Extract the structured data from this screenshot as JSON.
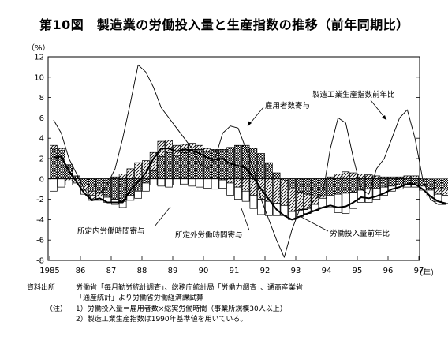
{
  "title": "第10図　製造業の労働投入量と生産指数の推移（前年同期比）",
  "chart_data": {
    "type": "bar",
    "y_unit": "（%）",
    "x_unit": "（年）",
    "ylim": [
      -8,
      12
    ],
    "y_ticks": [
      12,
      10,
      8,
      6,
      4,
      2,
      0,
      -2,
      -4,
      -6,
      -8
    ],
    "x_tick_labels": [
      "1985",
      "86",
      "87",
      "88",
      "89",
      "90",
      "91",
      "92",
      "93",
      "94",
      "95",
      "96",
      "97"
    ],
    "quarters_per_year": 4,
    "first_year": 1985,
    "grid": false,
    "series": [
      {
        "name": "雇用者数寄与",
        "kind": "bar",
        "pattern": "cross-hatch",
        "values": [
          3.0,
          2.8,
          1.4,
          0.3,
          -0.6,
          -1.2,
          -1.4,
          -1.7,
          -2.0,
          -2.2,
          -1.6,
          -1.2,
          -0.4,
          0.8,
          2.2,
          2.6,
          2.3,
          2.6,
          2.9,
          2.9,
          2.7,
          2.8,
          2.9,
          3.1,
          3.3,
          3.3,
          3.0,
          2.5,
          1.6,
          0.6,
          -0.2,
          -1.0,
          -1.3,
          -1.5,
          -1.7,
          -1.7,
          -1.6,
          -1.5,
          -1.4,
          -1.3,
          -1.1,
          -1.0,
          -0.9,
          -0.8,
          -0.7,
          -0.6,
          -0.5,
          -0.6,
          -0.7,
          -0.9,
          -1.0,
          -1.0
        ]
      },
      {
        "name": "所定外労働時間寄与",
        "kind": "bar",
        "pattern": "diagonal",
        "values": [
          0.3,
          0.2,
          -0.2,
          -0.4,
          -0.5,
          -0.4,
          -0.3,
          -0.1,
          0.2,
          0.5,
          1.0,
          1.6,
          1.8,
          1.8,
          1.5,
          1.2,
          1.0,
          0.8,
          0.6,
          0.4,
          0.3,
          0.1,
          -0.1,
          -0.4,
          -0.8,
          -1.2,
          -1.6,
          -2.0,
          -2.2,
          -2.4,
          -2.4,
          -2.2,
          -1.8,
          -1.4,
          -0.8,
          -0.2,
          0.2,
          0.5,
          0.7,
          0.6,
          0.5,
          0.4,
          0.3,
          0.2,
          0.2,
          0.2,
          0.3,
          0.3,
          0.1,
          -0.2,
          -0.5,
          -0.6
        ]
      },
      {
        "name": "所定内労働時間寄与",
        "kind": "bar",
        "pattern": "blank",
        "values": [
          -1.2,
          -0.8,
          -0.4,
          -0.2,
          -0.4,
          -0.5,
          -0.4,
          -0.5,
          -0.5,
          -0.6,
          -0.5,
          -0.7,
          -0.8,
          -0.6,
          -0.7,
          -0.8,
          -0.6,
          -0.5,
          -0.7,
          -0.8,
          -0.9,
          -1.0,
          -0.8,
          -1.2,
          -1.2,
          -1.0,
          -1.3,
          -1.5,
          -1.4,
          -1.2,
          -1.0,
          -0.8,
          -0.6,
          -0.5,
          -0.6,
          -0.9,
          -1.2,
          -1.8,
          -2.0,
          -1.6,
          -1.2,
          -1.3,
          -1.1,
          -0.8,
          -0.5,
          -0.4,
          -0.3,
          -0.2,
          -0.4,
          -0.6,
          -0.7,
          -0.8
        ]
      },
      {
        "name": "労働投入量前年比",
        "kind": "line",
        "style": "thick",
        "values": [
          2.1,
          2.2,
          0.8,
          -0.3,
          -1.4,
          -2.1,
          -1.9,
          -2.3,
          -2.3,
          -2.3,
          -1.1,
          -0.3,
          0.6,
          2.0,
          3.0,
          3.0,
          2.7,
          2.9,
          2.8,
          2.5,
          2.1,
          1.9,
          2.0,
          1.5,
          1.3,
          1.1,
          0.1,
          -1.0,
          -2.0,
          -3.0,
          -3.6,
          -4.0,
          -3.7,
          -3.4,
          -3.1,
          -2.8,
          -2.6,
          -2.8,
          -2.7,
          -2.3,
          -1.8,
          -1.9,
          -1.7,
          -1.4,
          -1.0,
          -0.8,
          -0.5,
          -0.5,
          -1.0,
          -1.7,
          -2.2,
          -2.4
        ]
      },
      {
        "name": "製造工業生産指数前年比",
        "kind": "line",
        "style": "thin",
        "values": [
          5.8,
          4.5,
          2.0,
          0.5,
          -1.0,
          -2.0,
          -1.5,
          -0.5,
          1.0,
          4.0,
          7.5,
          11.2,
          10.5,
          9.0,
          7.0,
          6.0,
          5.0,
          4.0,
          3.0,
          1.5,
          1.0,
          2.0,
          4.5,
          5.2,
          5.0,
          3.0,
          1.0,
          -2.0,
          -4.0,
          -6.0,
          -7.7,
          -5.0,
          -3.0,
          -3.0,
          -2.0,
          -1.5,
          3.0,
          6.0,
          5.5,
          2.0,
          -1.0,
          -1.5,
          1.0,
          2.0,
          4.0,
          6.0,
          6.8,
          4.0,
          0.0,
          -2.0,
          -2.5,
          -2.5
        ]
      }
    ],
    "annotations": [
      "雇用者数寄与",
      "製造工業生産指数前年比",
      "所定内労働時間寄与",
      "所定外労働時間寄与",
      "労働投入量前年比"
    ]
  },
  "notes": {
    "source_label": "資料出所",
    "source_line1": "労働省「毎月勤労統計調査」、総務庁統計局「労働力調査」、通商産業省",
    "source_line2": "「通産統計」より労働省労働経済課試算",
    "note_label": "（注）",
    "note1": "1）労働投入量＝雇用者数×総実労働時間（事業所規模30人以上）",
    "note2": "2）製造工業生産指数は1990年基準値を用いている。"
  }
}
